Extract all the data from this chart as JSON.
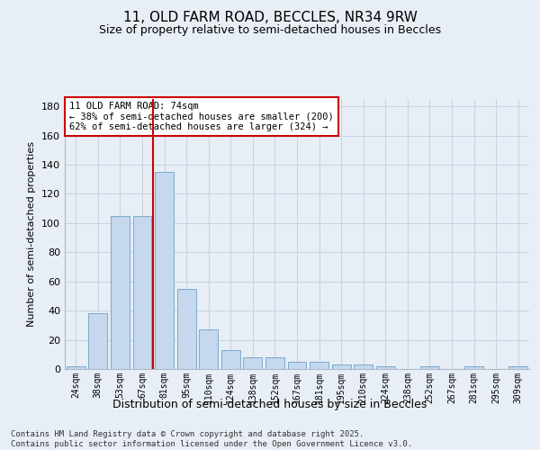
{
  "title1": "11, OLD FARM ROAD, BECCLES, NR34 9RW",
  "title2": "Size of property relative to semi-detached houses in Beccles",
  "xlabel": "Distribution of semi-detached houses by size in Beccles",
  "ylabel": "Number of semi-detached properties",
  "categories": [
    "24sqm",
    "38sqm",
    "53sqm",
    "67sqm",
    "81sqm",
    "95sqm",
    "110sqm",
    "124sqm",
    "138sqm",
    "152sqm",
    "167sqm",
    "181sqm",
    "195sqm",
    "210sqm",
    "224sqm",
    "238sqm",
    "252sqm",
    "267sqm",
    "281sqm",
    "295sqm",
    "309sqm"
  ],
  "values": [
    2,
    38,
    105,
    105,
    135,
    55,
    27,
    13,
    8,
    8,
    5,
    5,
    3,
    3,
    2,
    0,
    2,
    0,
    2,
    0,
    2
  ],
  "bar_color": "#c5d8ee",
  "bar_edge_color": "#7aaace",
  "grid_color": "#c8d4e3",
  "bg_color": "#e8eef5",
  "vline_x_index": 3,
  "vline_color": "#cc0000",
  "annotation_text": "11 OLD FARM ROAD: 74sqm\n← 38% of semi-detached houses are smaller (200)\n62% of semi-detached houses are larger (324) →",
  "annotation_box_color": "#cc0000",
  "footer": "Contains HM Land Registry data © Crown copyright and database right 2025.\nContains public sector information licensed under the Open Government Licence v3.0.",
  "ylim": [
    0,
    185
  ],
  "yticks": [
    0,
    20,
    40,
    60,
    80,
    100,
    120,
    140,
    160,
    180
  ]
}
